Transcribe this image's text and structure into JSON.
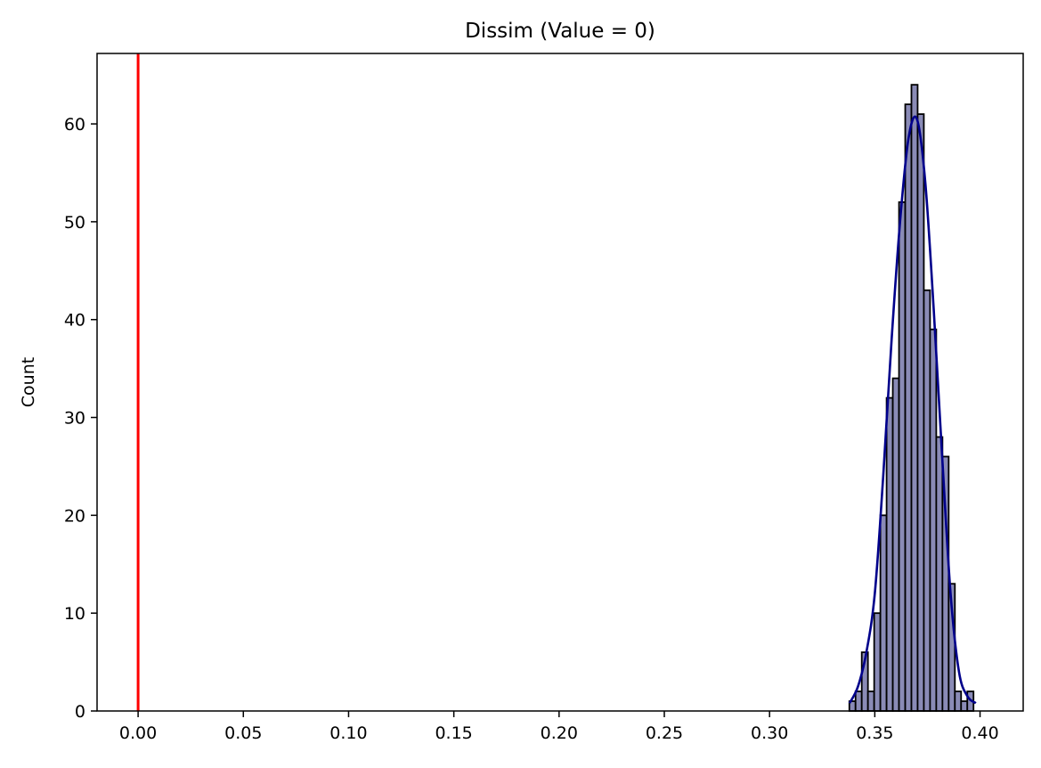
{
  "chart_data": {
    "type": "bar",
    "title": "Dissim (Value = 0)",
    "xlabel": "",
    "ylabel": "Count",
    "xlim": [
      -0.0195,
      0.4205
    ],
    "ylim": [
      0,
      67.2
    ],
    "xticks": [
      0.0,
      0.05,
      0.1,
      0.15,
      0.2,
      0.25,
      0.3,
      0.35,
      0.4
    ],
    "xtick_labels": [
      "0.00",
      "0.05",
      "0.10",
      "0.15",
      "0.20",
      "0.25",
      "0.30",
      "0.35",
      "0.40"
    ],
    "yticks": [
      0,
      10,
      20,
      30,
      40,
      50,
      60
    ],
    "ytick_labels": [
      "0",
      "10",
      "20",
      "30",
      "40",
      "50",
      "60"
    ],
    "grid": false,
    "bin_width": 0.00295,
    "bins": [
      {
        "x0": 0.3379,
        "count": 1
      },
      {
        "x0": 0.34085,
        "count": 2
      },
      {
        "x0": 0.3438,
        "count": 6
      },
      {
        "x0": 0.34675,
        "count": 2
      },
      {
        "x0": 0.3497,
        "count": 10
      },
      {
        "x0": 0.35265,
        "count": 20
      },
      {
        "x0": 0.3556,
        "count": 32
      },
      {
        "x0": 0.35855,
        "count": 34
      },
      {
        "x0": 0.3615,
        "count": 52
      },
      {
        "x0": 0.36445,
        "count": 62
      },
      {
        "x0": 0.3674,
        "count": 64
      },
      {
        "x0": 0.37035,
        "count": 61
      },
      {
        "x0": 0.3733,
        "count": 43
      },
      {
        "x0": 0.37625,
        "count": 39
      },
      {
        "x0": 0.3792,
        "count": 28
      },
      {
        "x0": 0.38215,
        "count": 26
      },
      {
        "x0": 0.3851,
        "count": 13
      },
      {
        "x0": 0.38805,
        "count": 2
      },
      {
        "x0": 0.391,
        "count": 1
      },
      {
        "x0": 0.39395,
        "count": 2
      }
    ],
    "kde": {
      "x": [
        0.338,
        0.342,
        0.346,
        0.35,
        0.354,
        0.358,
        0.362,
        0.366,
        0.37,
        0.374,
        0.378,
        0.382,
        0.386,
        0.39,
        0.394,
        0.398
      ],
      "y": [
        0.8,
        2.5,
        6.0,
        12.0,
        24.0,
        38.0,
        50.0,
        58.5,
        60.5,
        54.0,
        41.0,
        26.0,
        12.0,
        4.0,
        1.5,
        0.8
      ]
    },
    "vline": {
      "x": 0.0,
      "color": "#ff0000"
    },
    "colors": {
      "bar_fill": "#8a8bb6",
      "bar_edge": "#000000",
      "kde_line": "#00008b"
    }
  }
}
